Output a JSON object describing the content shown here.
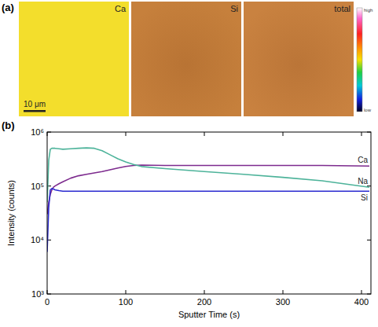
{
  "image_panel": {
    "label": "(a)",
    "scale_bar": "10 μm",
    "maps": [
      {
        "name": "Ca",
        "color": "#f3de2c"
      },
      {
        "name": "Si",
        "color": "#c6803c"
      },
      {
        "name": "total",
        "color": "#c98240"
      }
    ],
    "colorbar": {
      "high": "high",
      "low": "low"
    }
  },
  "chart_data": {
    "type": "line",
    "panel_label": "(b)",
    "x_label": "Sputter Time (s)",
    "y_label": "Intensity (counts)",
    "x": [
      0,
      2,
      4,
      6,
      8,
      10,
      15,
      20,
      30,
      40,
      50,
      60,
      70,
      80,
      90,
      100,
      110,
      120,
      150,
      200,
      250,
      300,
      350,
      410
    ],
    "series": [
      {
        "name": "Ca",
        "color": "#7d2b8e",
        "values": [
          30000,
          50000,
          70000,
          85000,
          95000,
          100000,
          110000,
          120000,
          140000,
          155000,
          165000,
          175000,
          185000,
          200000,
          215000,
          230000,
          240000,
          245000,
          240000,
          240000,
          240000,
          240000,
          240000,
          235000
        ]
      },
      {
        "name": "Na",
        "color": "#4db39a",
        "values": [
          50000,
          300000,
          480000,
          500000,
          500000,
          500000,
          490000,
          480000,
          490000,
          500000,
          510000,
          500000,
          450000,
          380000,
          320000,
          280000,
          250000,
          230000,
          210000,
          185000,
          165000,
          145000,
          125000,
          95000
        ]
      },
      {
        "name": "Si",
        "color": "#2b2bd0",
        "values": [
          6000,
          40000,
          85000,
          90000,
          88000,
          85000,
          82000,
          80000,
          80000,
          80000,
          80000,
          80000,
          80000,
          80000,
          80000,
          80000,
          80000,
          80000,
          80000,
          80000,
          80000,
          80000,
          80000,
          80000
        ]
      }
    ],
    "xlim": [
      0,
      412
    ],
    "xticks": [
      0,
      100,
      200,
      300,
      400
    ],
    "ylim": [
      1000,
      1000000
    ],
    "yticks": [
      {
        "value": 1000,
        "label": "10³"
      },
      {
        "value": 10000,
        "label": "10⁴"
      },
      {
        "value": 100000,
        "label": "10⁵"
      },
      {
        "value": 1000000,
        "label": "10⁶"
      }
    ],
    "log": "y",
    "grid": false
  }
}
